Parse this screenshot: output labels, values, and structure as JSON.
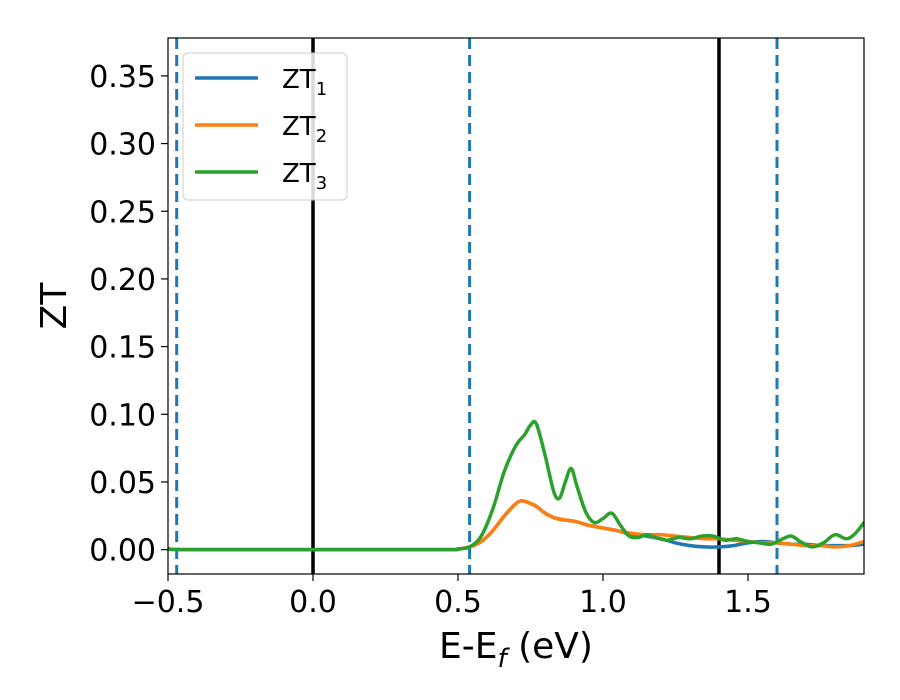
{
  "chart_data": {
    "type": "line",
    "title": "",
    "xlabel": {
      "main": "E-E",
      "sub": "f",
      "suffix": " (eV)"
    },
    "ylabel": "ZT",
    "xlim": [
      -0.5,
      1.9
    ],
    "ylim": [
      -0.018,
      0.378
    ],
    "xticks": [
      {
        "value": -0.5,
        "label": "−0.5"
      },
      {
        "value": 0.0,
        "label": "0.0"
      },
      {
        "value": 0.5,
        "label": "0.5"
      },
      {
        "value": 1.0,
        "label": "1.0"
      },
      {
        "value": 1.5,
        "label": "1.5"
      }
    ],
    "yticks": [
      {
        "value": 0.0,
        "label": "0.00"
      },
      {
        "value": 0.05,
        "label": "0.05"
      },
      {
        "value": 0.1,
        "label": "0.10"
      },
      {
        "value": 0.15,
        "label": "0.15"
      },
      {
        "value": 0.2,
        "label": "0.20"
      },
      {
        "value": 0.25,
        "label": "0.25"
      },
      {
        "value": 0.3,
        "label": "0.30"
      },
      {
        "value": 0.35,
        "label": "0.35"
      }
    ],
    "grid": false,
    "legend_position": "top-left",
    "vlines": [
      {
        "x": -0.47,
        "style": "dashed",
        "color": "#1f77b4"
      },
      {
        "x": 0.0,
        "style": "solid",
        "color": "#000000"
      },
      {
        "x": 0.54,
        "style": "dashed",
        "color": "#1f77b4"
      },
      {
        "x": 1.4,
        "style": "solid",
        "color": "#000000"
      },
      {
        "x": 1.6,
        "style": "dashed",
        "color": "#1f77b4"
      }
    ],
    "series": [
      {
        "name": "ZT",
        "sub": "1",
        "color": "#1f77b4",
        "x": [
          -0.5,
          -0.45,
          0,
          0.45,
          0.5,
          0.54,
          0.58,
          0.62,
          0.66,
          0.7,
          0.72,
          0.74,
          0.77,
          0.8,
          0.84,
          0.9,
          0.95,
          1.0,
          1.05,
          1.1,
          1.15,
          1.2,
          1.25,
          1.3,
          1.35,
          1.4,
          1.45,
          1.5,
          1.55,
          1.6,
          1.65,
          1.7,
          1.75,
          1.8,
          1.85,
          1.9
        ],
        "y": [
          0.001,
          0,
          0,
          0,
          0.0005,
          0.002,
          0.006,
          0.014,
          0.025,
          0.034,
          0.036,
          0.035,
          0.032,
          0.027,
          0.023,
          0.021,
          0.018,
          0.016,
          0.014,
          0.011,
          0.01,
          0.008,
          0.005,
          0.003,
          0.002,
          0.002,
          0.003,
          0.005,
          0.006,
          0.005,
          0.004,
          0.004,
          0.003,
          0.003,
          0.003,
          0.004
        ]
      },
      {
        "name": "ZT",
        "sub": "2",
        "color": "#ff7f0e",
        "x": [
          -0.5,
          -0.45,
          0,
          0.45,
          0.5,
          0.54,
          0.58,
          0.62,
          0.66,
          0.7,
          0.72,
          0.74,
          0.77,
          0.8,
          0.84,
          0.9,
          0.95,
          1.0,
          1.05,
          1.1,
          1.15,
          1.2,
          1.25,
          1.3,
          1.35,
          1.4,
          1.45,
          1.5,
          1.55,
          1.6,
          1.65,
          1.7,
          1.75,
          1.8,
          1.85,
          1.9
        ],
        "y": [
          0.001,
          0,
          0,
          0,
          0.0005,
          0.002,
          0.006,
          0.014,
          0.025,
          0.034,
          0.036,
          0.035,
          0.032,
          0.027,
          0.023,
          0.021,
          0.018,
          0.016,
          0.014,
          0.012,
          0.011,
          0.011,
          0.01,
          0.009,
          0.008,
          0.008,
          0.007,
          0.006,
          0.005,
          0.005,
          0.004,
          0.003,
          0.003,
          0.002,
          0.003,
          0.006
        ]
      },
      {
        "name": "ZT",
        "sub": "3",
        "color": "#2ca02c",
        "x": [
          -0.5,
          -0.45,
          0,
          0.45,
          0.5,
          0.54,
          0.58,
          0.62,
          0.66,
          0.7,
          0.73,
          0.75,
          0.77,
          0.8,
          0.83,
          0.85,
          0.87,
          0.89,
          0.91,
          0.94,
          0.97,
          1.0,
          1.03,
          1.06,
          1.09,
          1.12,
          1.15,
          1.18,
          1.22,
          1.26,
          1.3,
          1.34,
          1.38,
          1.42,
          1.46,
          1.5,
          1.54,
          1.58,
          1.62,
          1.65,
          1.68,
          1.72,
          1.76,
          1.8,
          1.84,
          1.87,
          1.9
        ],
        "y": [
          0.001,
          0,
          0,
          0,
          0.0005,
          0.002,
          0.01,
          0.03,
          0.058,
          0.077,
          0.085,
          0.092,
          0.093,
          0.07,
          0.043,
          0.038,
          0.05,
          0.06,
          0.047,
          0.028,
          0.02,
          0.023,
          0.027,
          0.018,
          0.01,
          0.009,
          0.011,
          0.009,
          0.007,
          0.009,
          0.008,
          0.01,
          0.01,
          0.007,
          0.008,
          0.006,
          0.005,
          0.004,
          0.008,
          0.01,
          0.006,
          0.002,
          0.005,
          0.011,
          0.008,
          0.012,
          0.02
        ]
      }
    ]
  }
}
